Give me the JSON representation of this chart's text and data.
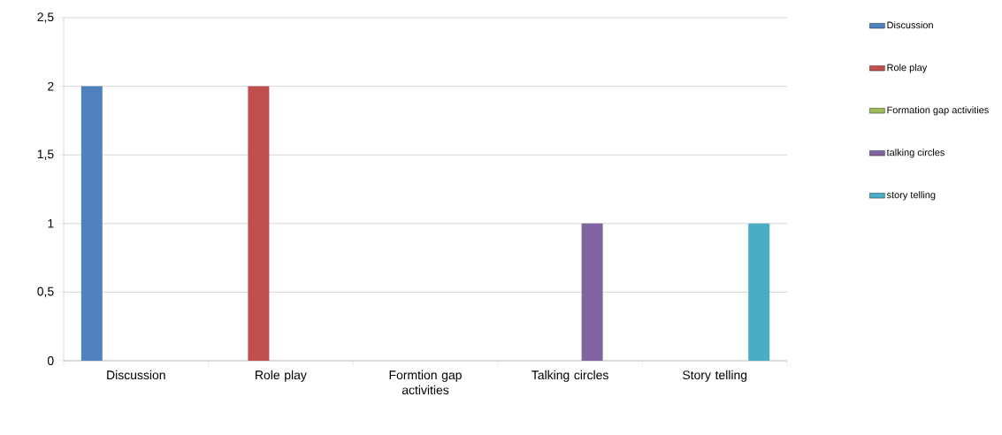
{
  "chart_data": {
    "type": "bar",
    "categories": [
      "Discussion",
      "Role play",
      "Formtion gap activities",
      "Talking circles",
      "Story telling"
    ],
    "series": [
      {
        "name": "Discussion",
        "color": "#4f81bd",
        "values": [
          2,
          0,
          0,
          0,
          0
        ]
      },
      {
        "name": "Role play",
        "color": "#c0504d",
        "values": [
          0,
          2,
          0,
          0,
          0
        ]
      },
      {
        "name": "Formation gap activities",
        "color": "#9bbb59",
        "values": [
          0,
          0,
          0,
          0,
          0
        ]
      },
      {
        "name": "talking circles",
        "color": "#8064a2",
        "values": [
          0,
          0,
          0,
          1,
          0
        ]
      },
      {
        "name": "story telling",
        "color": "#4bacc6",
        "values": [
          0,
          0,
          0,
          0,
          1
        ]
      }
    ],
    "ylim": [
      0,
      2.5
    ],
    "yticks": [
      0,
      {
        "value": 0.5,
        "label": "0,5"
      },
      1,
      {
        "value": 1.5,
        "label": "1,5"
      },
      2,
      {
        "value": 2.5,
        "label": "2,5"
      }
    ],
    "grid": "y",
    "legend": "right"
  }
}
